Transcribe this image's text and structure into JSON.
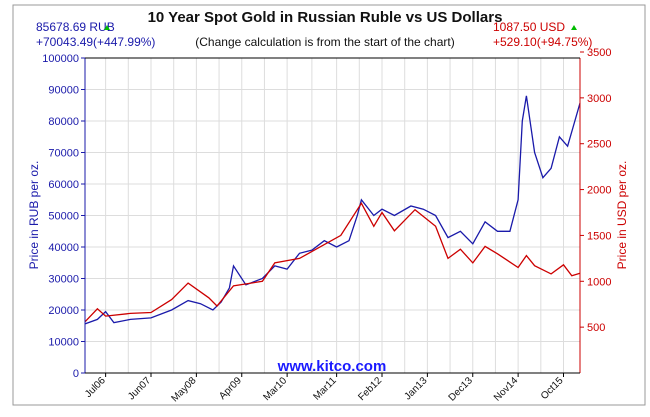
{
  "chart_data": {
    "type": "line",
    "title": "10 Year Spot Gold in Russian Ruble vs US Dollars",
    "subtitle": "(Change calculation is from the start of the chart)",
    "watermark": "www.kitco.com",
    "left_summary": {
      "price": "85678.69 RUB",
      "change": "+70043.49(+447.99%)",
      "direction": "up"
    },
    "right_summary": {
      "price": "1087.50 USD",
      "change": "+529.10(+94.75%)",
      "direction": "up"
    },
    "ylabel_left": "Price in RUB per oz.",
    "ylabel_right": "Price in USD per oz.",
    "ylim_left": [
      0,
      100000
    ],
    "yticks_left": [
      "0",
      "10000",
      "20000",
      "30000",
      "40000",
      "50000",
      "60000",
      "70000",
      "80000",
      "90000",
      "100000"
    ],
    "ylim_right": [
      0,
      3500
    ],
    "yticks_right": [
      "500",
      "1000",
      "1500",
      "2000",
      "2500",
      "3000",
      "3500"
    ],
    "xlim": [
      "2006-02",
      "2016-02"
    ],
    "xticks": [
      {
        "date": "2006-07",
        "label": "Jul06"
      },
      {
        "date": "2007-06",
        "label": "Jun07"
      },
      {
        "date": "2008-05",
        "label": "May08"
      },
      {
        "date": "2009-04",
        "label": "Apr09"
      },
      {
        "date": "2010-03",
        "label": "Mar10"
      },
      {
        "date": "2011-03",
        "label": "Mar11"
      },
      {
        "date": "2012-02",
        "label": "Feb12"
      },
      {
        "date": "2013-01",
        "label": "Jan13"
      },
      {
        "date": "2013-12",
        "label": "Dec13"
      },
      {
        "date": "2014-11",
        "label": "Nov14"
      },
      {
        "date": "2015-10",
        "label": "Oct15"
      }
    ],
    "grid": true,
    "colors": {
      "rub": "#1a1aaa",
      "usd": "#cc0000",
      "up": "#00bb00",
      "watermark": "#1a1aff"
    },
    "series": [
      {
        "name": "RUB",
        "axis": "left",
        "points": [
          [
            "2006-02",
            15600
          ],
          [
            "2006-05",
            17000
          ],
          [
            "2006-07",
            19500
          ],
          [
            "2006-09",
            16000
          ],
          [
            "2007-01",
            17000
          ],
          [
            "2007-06",
            17500
          ],
          [
            "2007-11",
            20000
          ],
          [
            "2008-03",
            23000
          ],
          [
            "2008-06",
            22000
          ],
          [
            "2008-09",
            20000
          ],
          [
            "2008-11",
            22500
          ],
          [
            "2009-01",
            27000
          ],
          [
            "2009-02",
            34000
          ],
          [
            "2009-05",
            28000
          ],
          [
            "2009-09",
            30000
          ],
          [
            "2009-12",
            34000
          ],
          [
            "2010-03",
            33000
          ],
          [
            "2010-06",
            38000
          ],
          [
            "2010-09",
            39000
          ],
          [
            "2010-12",
            42000
          ],
          [
            "2011-03",
            40000
          ],
          [
            "2011-06",
            42000
          ],
          [
            "2011-08",
            50000
          ],
          [
            "2011-09",
            55000
          ],
          [
            "2011-12",
            50000
          ],
          [
            "2012-02",
            52000
          ],
          [
            "2012-05",
            50000
          ],
          [
            "2012-09",
            53000
          ],
          [
            "2012-12",
            52000
          ],
          [
            "2013-03",
            50000
          ],
          [
            "2013-06",
            43000
          ],
          [
            "2013-09",
            45000
          ],
          [
            "2013-12",
            41000
          ],
          [
            "2014-03",
            48000
          ],
          [
            "2014-06",
            45000
          ],
          [
            "2014-09",
            45000
          ],
          [
            "2014-11",
            55000
          ],
          [
            "2014-12",
            80000
          ],
          [
            "2015-01",
            88000
          ],
          [
            "2015-03",
            70000
          ],
          [
            "2015-05",
            62000
          ],
          [
            "2015-07",
            65000
          ],
          [
            "2015-09",
            75000
          ],
          [
            "2015-11",
            72000
          ],
          [
            "2016-02",
            85679
          ]
        ]
      },
      {
        "name": "USD",
        "axis": "right",
        "points": [
          [
            "2006-02",
            558
          ],
          [
            "2006-05",
            700
          ],
          [
            "2006-07",
            620
          ],
          [
            "2007-01",
            650
          ],
          [
            "2007-06",
            660
          ],
          [
            "2007-11",
            800
          ],
          [
            "2008-03",
            980
          ],
          [
            "2008-08",
            820
          ],
          [
            "2008-10",
            730
          ],
          [
            "2009-02",
            950
          ],
          [
            "2009-09",
            1000
          ],
          [
            "2009-12",
            1200
          ],
          [
            "2010-06",
            1250
          ],
          [
            "2010-12",
            1400
          ],
          [
            "2011-04",
            1500
          ],
          [
            "2011-09",
            1850
          ],
          [
            "2011-12",
            1600
          ],
          [
            "2012-02",
            1750
          ],
          [
            "2012-05",
            1550
          ],
          [
            "2012-10",
            1780
          ],
          [
            "2013-03",
            1600
          ],
          [
            "2013-06",
            1250
          ],
          [
            "2013-09",
            1350
          ],
          [
            "2013-12",
            1200
          ],
          [
            "2014-03",
            1380
          ],
          [
            "2014-06",
            1300
          ],
          [
            "2014-11",
            1150
          ],
          [
            "2015-01",
            1280
          ],
          [
            "2015-03",
            1170
          ],
          [
            "2015-07",
            1080
          ],
          [
            "2015-10",
            1180
          ],
          [
            "2015-12",
            1060
          ],
          [
            "2016-02",
            1088
          ]
        ]
      }
    ]
  }
}
